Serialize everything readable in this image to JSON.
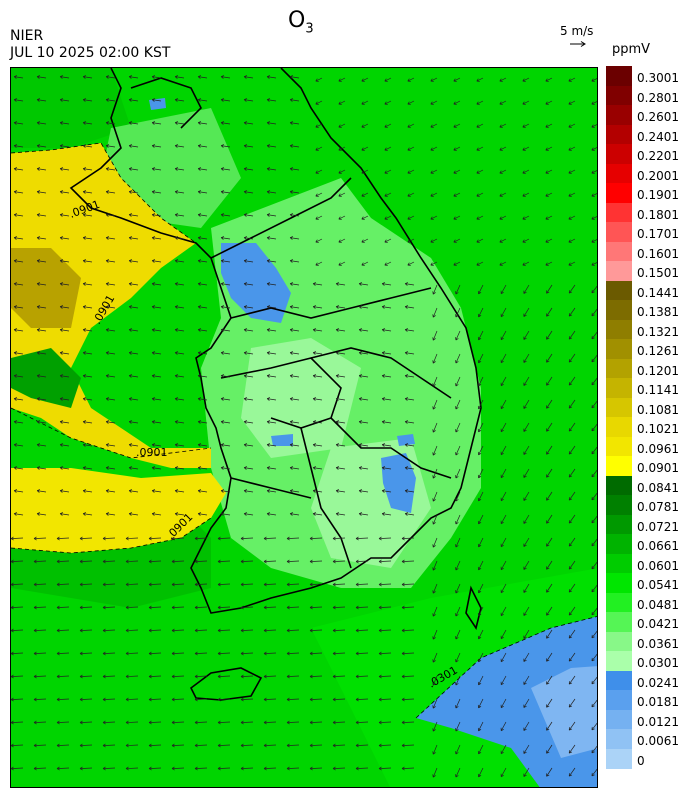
{
  "header": {
    "agency": "NIER",
    "datetime": "JUL 10 2025 02:00 KST",
    "species": "O",
    "species_sub": "3",
    "vector_label": "5 m/s",
    "unit": "ppmV"
  },
  "legend": {
    "ticks": [
      "0.3001",
      "0.2801",
      "0.2601",
      "0.2401",
      "0.2201",
      "0.2001",
      "0.1901",
      "0.1801",
      "0.1701",
      "0.1601",
      "0.1501",
      "0.1441",
      "0.1381",
      "0.1321",
      "0.1261",
      "0.1201",
      "0.1141",
      "0.1081",
      "0.1021",
      "0.0961",
      "0.0901",
      "0.0841",
      "0.0781",
      "0.0721",
      "0.0661",
      "0.0601",
      "0.0541",
      "0.0481",
      "0.0421",
      "0.0361",
      "0.0301",
      "0.0241",
      "0.0181",
      "0.0121",
      "0.0061",
      "0"
    ],
    "colors": [
      "#6b0000",
      "#800000",
      "#990000",
      "#b30000",
      "#cc0000",
      "#e60000",
      "#ff0000",
      "#ff3333",
      "#ff5555",
      "#ff7777",
      "#ff9999",
      "#6b5a00",
      "#7d6c00",
      "#8f7e00",
      "#a19000",
      "#b3a200",
      "#c5b400",
      "#d6c600",
      "#e8d800",
      "#f2e600",
      "#ffff00",
      "#006b00",
      "#008000",
      "#009900",
      "#00b300",
      "#00cc00",
      "#00e600",
      "#22f022",
      "#55f555",
      "#88f888",
      "#aaffaa",
      "#3f8fea",
      "#5aa0ee",
      "#75b1f1",
      "#90c2f4",
      "#abd3f7"
    ]
  },
  "map": {
    "contour_labels": [
      ".0901",
      ".0901",
      ".0901",
      ".0901",
      ".0301"
    ]
  }
}
